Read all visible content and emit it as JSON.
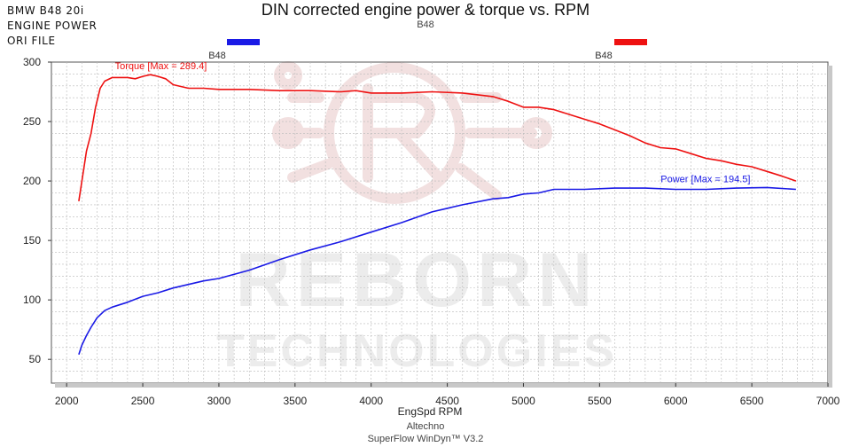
{
  "header": {
    "corner_lines": [
      "BMW B48 20i",
      "ENGINE POWER",
      "ORI FILE"
    ],
    "title": "DIN corrected engine power & torque vs. RPM",
    "subtitle": "B48"
  },
  "legend": {
    "items": [
      {
        "label": "B48",
        "color": "#1a1ae6"
      },
      {
        "label": "B48",
        "color": "#ee1111"
      }
    ]
  },
  "watermark": {
    "line1": "REBORN",
    "line2": "TECHNOLOGIES"
  },
  "footer": {
    "line1": "Altechno",
    "line2": "SuperFlow WinDyn™ V3.2"
  },
  "chart_data": {
    "type": "line",
    "title": "DIN corrected engine power & torque vs. RPM",
    "xlabel": "EngSpd RPM",
    "ylabel": "",
    "xlim": [
      1900,
      7000
    ],
    "ylim": [
      30,
      300
    ],
    "xticks": [
      2000,
      2500,
      3000,
      3500,
      4000,
      4500,
      5000,
      5500,
      6000,
      6500,
      7000
    ],
    "yticks": [
      50,
      100,
      150,
      200,
      250,
      300
    ],
    "grid": true,
    "series": [
      {
        "name": "Torque",
        "color": "#ee1111",
        "annotation": "Torque [Max = 289.4]",
        "x": [
          2080,
          2100,
          2130,
          2160,
          2190,
          2220,
          2250,
          2300,
          2350,
          2400,
          2450,
          2500,
          2550,
          2600,
          2650,
          2700,
          2800,
          2900,
          3000,
          3200,
          3400,
          3600,
          3800,
          3900,
          4000,
          4200,
          4400,
          4600,
          4800,
          4900,
          5000,
          5100,
          5200,
          5400,
          5500,
          5600,
          5700,
          5800,
          5900,
          6000,
          6100,
          6200,
          6300,
          6400,
          6500,
          6600,
          6700,
          6790
        ],
        "values": [
          183,
          200,
          225,
          240,
          262,
          278,
          284,
          287,
          287,
          287,
          286,
          288,
          289.4,
          288,
          286,
          281,
          278,
          278,
          277,
          277,
          276,
          276,
          275,
          276,
          274,
          274,
          275,
          274,
          271,
          267,
          262,
          262,
          260,
          252,
          248,
          243,
          238,
          232,
          228,
          227,
          223,
          219,
          217,
          214,
          212,
          208,
          204,
          200
        ]
      },
      {
        "name": "Power",
        "color": "#1a1ae6",
        "annotation": "Power  [Max = 194.5]",
        "x": [
          2080,
          2100,
          2130,
          2160,
          2200,
          2250,
          2300,
          2400,
          2500,
          2600,
          2700,
          2800,
          2900,
          3000,
          3200,
          3400,
          3600,
          3800,
          4000,
          4200,
          4400,
          4600,
          4800,
          4900,
          5000,
          5100,
          5200,
          5400,
          5600,
          5800,
          6000,
          6200,
          6400,
          6600,
          6790
        ],
        "values": [
          54,
          62,
          70,
          77,
          85,
          91,
          94,
          98,
          103,
          106,
          110,
          113,
          116,
          118,
          125,
          134,
          142,
          149,
          157,
          165,
          174,
          180,
          185,
          186,
          189,
          190,
          193,
          193,
          194,
          194,
          193,
          193,
          194,
          194.5,
          193
        ]
      }
    ]
  }
}
